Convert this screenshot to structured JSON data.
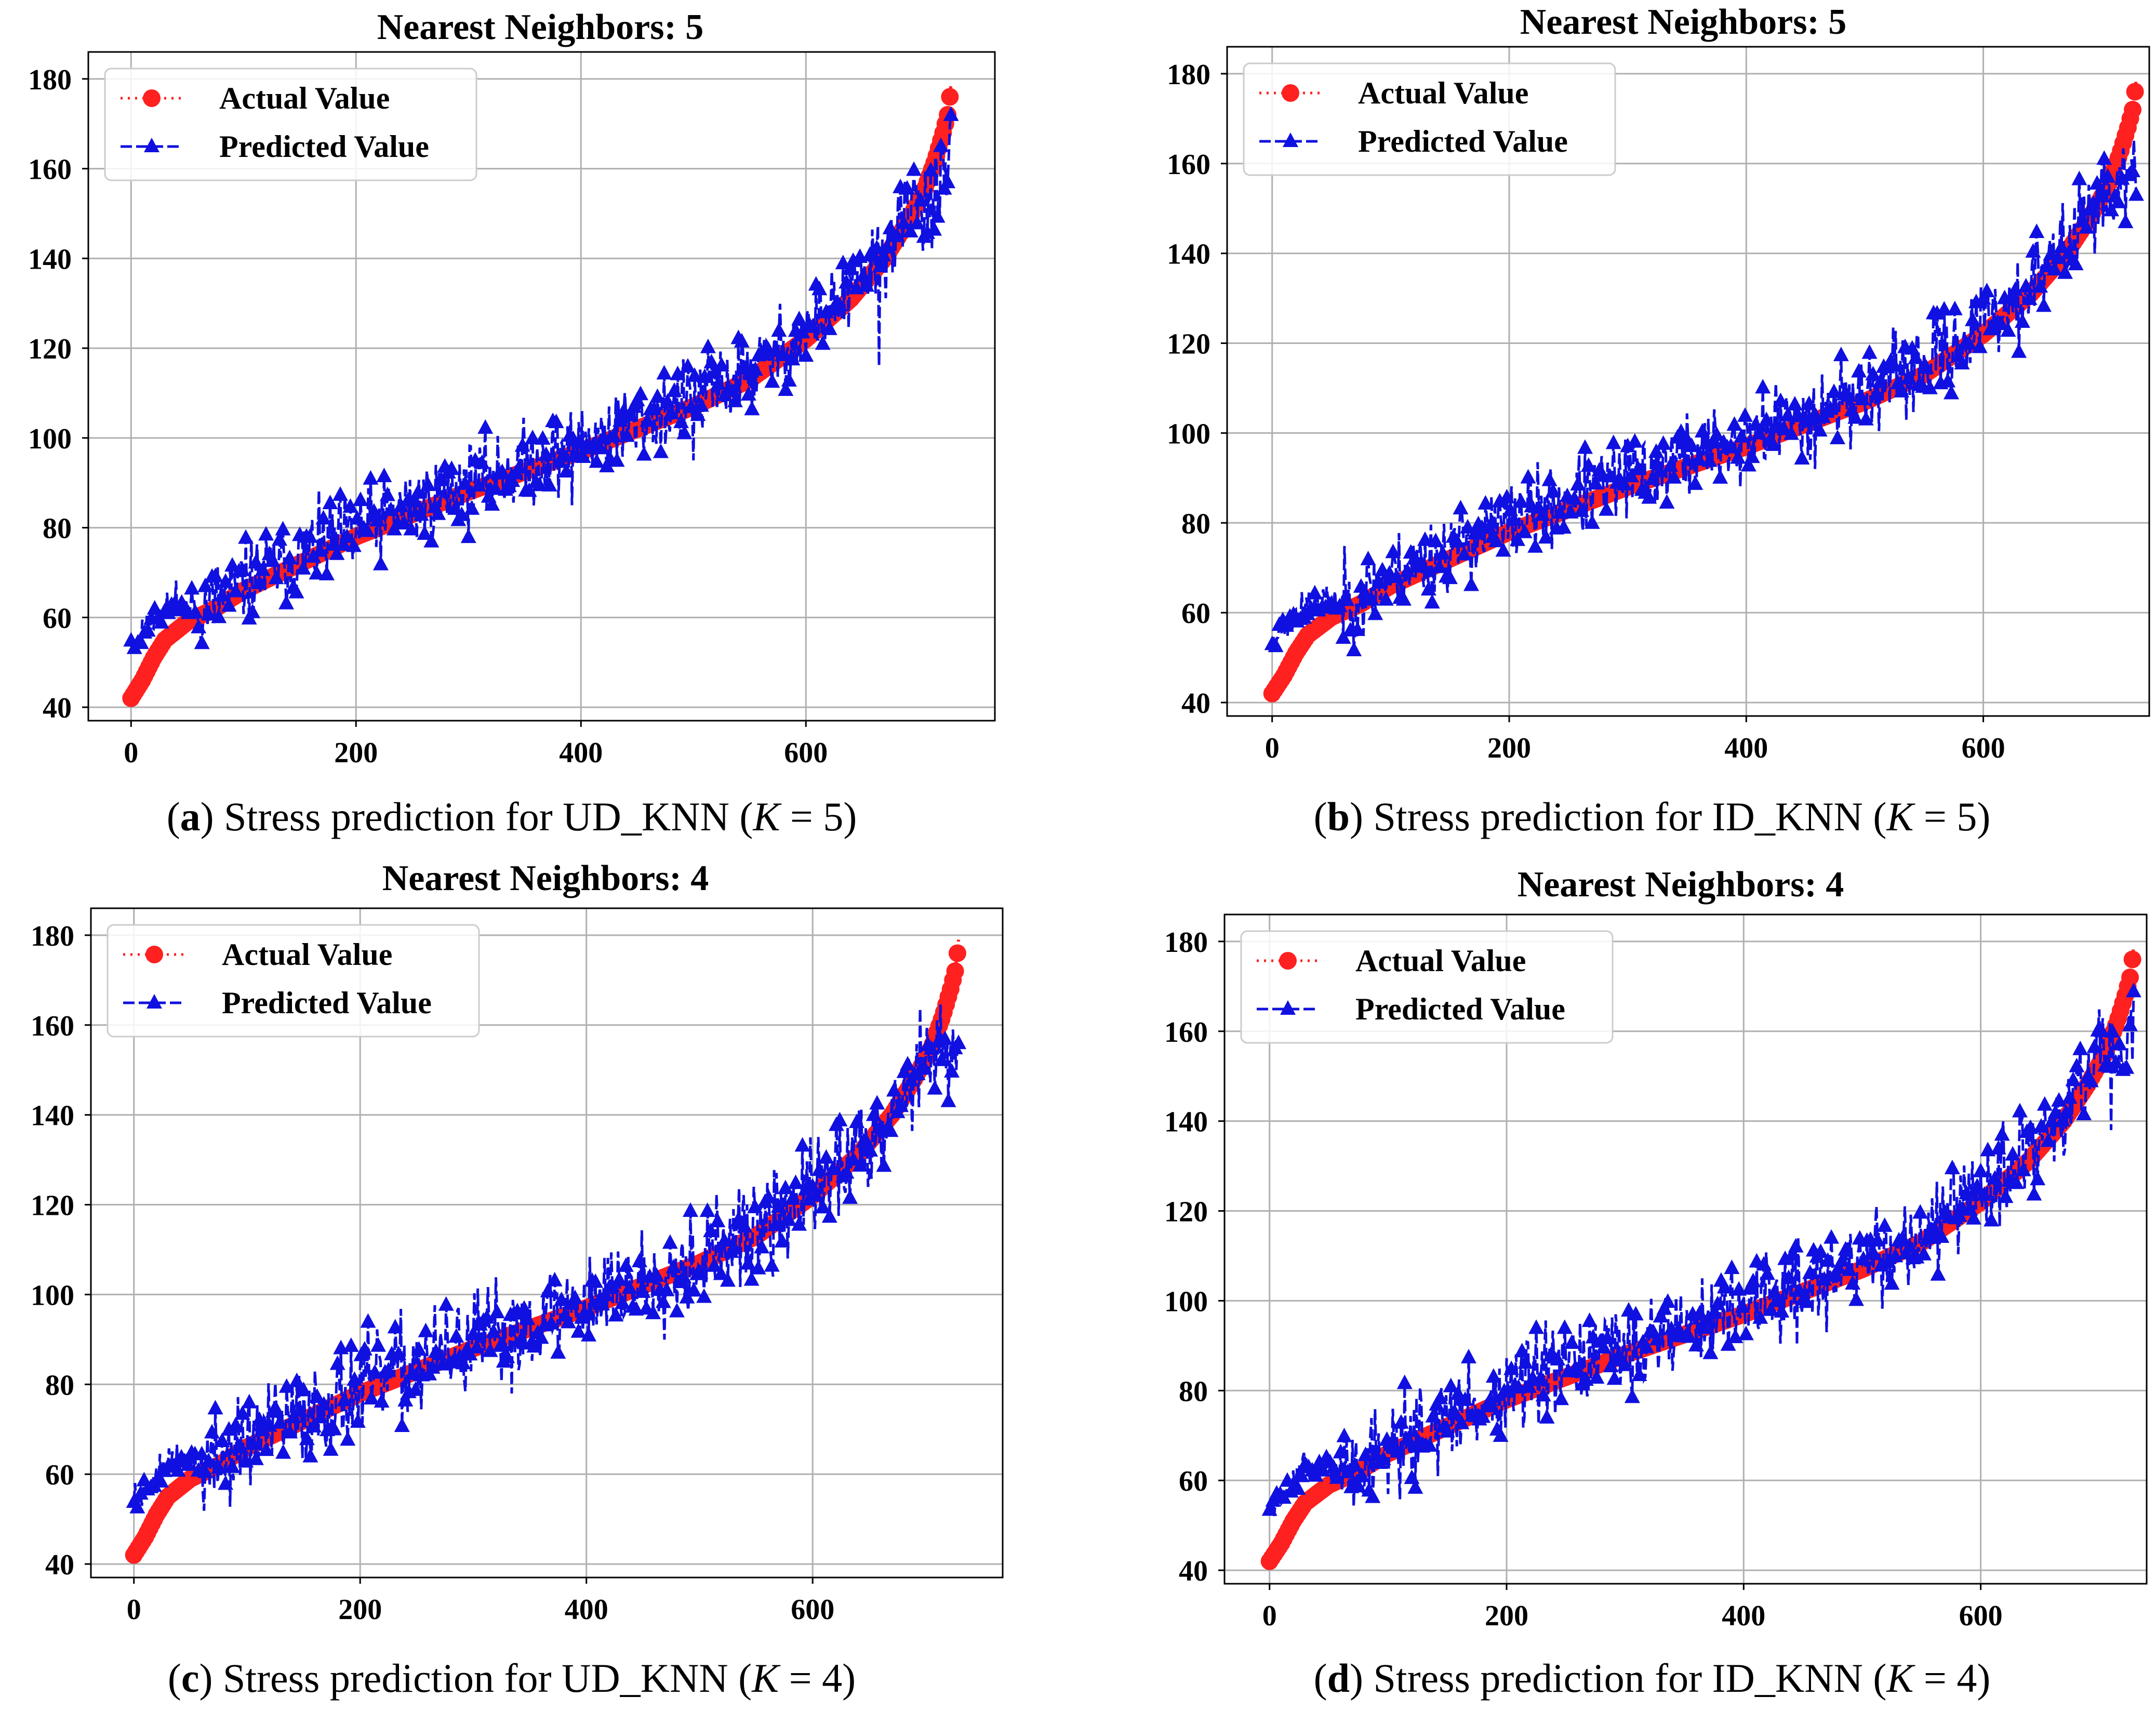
{
  "figure": {
    "captions": [
      {
        "letter": "a",
        "text": ") Stress prediction for UD_KNN (",
        "k_symbol": "K",
        "k_value": " = 5)"
      },
      {
        "letter": "b",
        "text": ") Stress prediction for ID_KNN (",
        "k_symbol": "K",
        "k_value": " = 5)"
      },
      {
        "letter": "c",
        "text": ") Stress prediction for UD_KNN (",
        "k_symbol": "K",
        "k_value": " = 4)"
      },
      {
        "letter": "d",
        "text": ") Stress prediction for ID_KNN (",
        "k_symbol": "K",
        "k_value": " = 4)"
      }
    ]
  },
  "chart_data": [
    {
      "type": "line",
      "title": "Nearest Neighbors: 5",
      "xlabel": "",
      "ylabel": "",
      "xlim": [
        -38,
        768
      ],
      "ylim": [
        37,
        186
      ],
      "xticks": [
        0,
        200,
        400,
        600
      ],
      "yticks": [
        40,
        60,
        80,
        100,
        120,
        140,
        160,
        180
      ],
      "grid": true,
      "legend_position": "top-left",
      "series": [
        {
          "name": "Actual Value",
          "color": "#ff2020",
          "marker": "circle",
          "linestyle": "dotted",
          "curve": [
            [
              0,
              42
            ],
            [
              10,
              46
            ],
            [
              20,
              51
            ],
            [
              30,
              55
            ],
            [
              50,
              59
            ],
            [
              75,
              62
            ],
            [
              100,
              66
            ],
            [
              150,
              72
            ],
            [
              200,
              78
            ],
            [
              300,
              88
            ],
            [
              400,
              97
            ],
            [
              500,
              107
            ],
            [
              550,
              113
            ],
            [
              600,
              122
            ],
            [
              640,
              131
            ],
            [
              670,
              140
            ],
            [
              690,
              148
            ],
            [
              705,
              155
            ],
            [
              715,
              162
            ],
            [
              722,
              168
            ],
            [
              726,
              172
            ],
            [
              728,
              176
            ],
            [
              729,
              179
            ],
            [
              730,
              180
            ]
          ]
        },
        {
          "name": "Predicted Value",
          "color": "#1010e0",
          "marker": "triangle",
          "linestyle": "dashed",
          "noise": 4.5,
          "bias": 1.5,
          "seed": 11,
          "outliers": [
            [
              392,
              85
            ],
            [
              665,
              116
            ],
            [
              197,
              73
            ],
            [
              500,
              95
            ]
          ]
        }
      ],
      "n_points": 730
    },
    {
      "type": "line",
      "title": "Nearest Neighbors: 5",
      "xlabel": "",
      "ylabel": "",
      "xlim": [
        -38,
        740
      ],
      "ylim": [
        37,
        186
      ],
      "xticks": [
        0,
        200,
        400,
        600
      ],
      "yticks": [
        40,
        60,
        80,
        100,
        120,
        140,
        160,
        180
      ],
      "grid": true,
      "legend_position": "top-left",
      "series": [
        {
          "name": "Actual Value",
          "color": "#ff2020",
          "marker": "circle",
          "linestyle": "dotted",
          "curve": [
            [
              0,
              42
            ],
            [
              10,
              46
            ],
            [
              20,
              51
            ],
            [
              30,
              55
            ],
            [
              50,
              59
            ],
            [
              75,
              62
            ],
            [
              100,
              66
            ],
            [
              150,
              72
            ],
            [
              200,
              78
            ],
            [
              300,
              88
            ],
            [
              400,
              97
            ],
            [
              500,
              107
            ],
            [
              550,
              113
            ],
            [
              600,
              122
            ],
            [
              640,
              131
            ],
            [
              670,
              140
            ],
            [
              690,
              148
            ],
            [
              705,
              155
            ],
            [
              715,
              162
            ],
            [
              722,
              168
            ],
            [
              726,
              172
            ],
            [
              728,
              176
            ],
            [
              729,
              179
            ],
            [
              730,
              180
            ]
          ]
        },
        {
          "name": "Predicted Value",
          "color": "#1010e0",
          "marker": "triangle",
          "linestyle": "dashed",
          "noise": 4.5,
          "bias": 2,
          "seed": 23,
          "outliers": [
            [
              458,
              92
            ],
            [
              630,
              118
            ],
            [
              395,
              88
            ],
            [
              280,
              84
            ]
          ]
        }
      ],
      "n_points": 730
    },
    {
      "type": "line",
      "title": "Nearest Neighbors: 4",
      "xlabel": "",
      "ylabel": "",
      "xlim": [
        -38,
        768
      ],
      "ylim": [
        37,
        186
      ],
      "xticks": [
        0,
        200,
        400,
        600
      ],
      "yticks": [
        40,
        60,
        80,
        100,
        120,
        140,
        160,
        180
      ],
      "grid": true,
      "legend_position": "top-left",
      "series": [
        {
          "name": "Actual Value",
          "color": "#ff2020",
          "marker": "circle",
          "linestyle": "dotted",
          "curve": [
            [
              0,
              42
            ],
            [
              10,
              46
            ],
            [
              20,
              51
            ],
            [
              30,
              55
            ],
            [
              50,
              59
            ],
            [
              75,
              62
            ],
            [
              100,
              66
            ],
            [
              150,
              72
            ],
            [
              200,
              78
            ],
            [
              300,
              88
            ],
            [
              400,
              97
            ],
            [
              500,
              107
            ],
            [
              550,
              113
            ],
            [
              600,
              122
            ],
            [
              640,
              131
            ],
            [
              670,
              140
            ],
            [
              690,
              148
            ],
            [
              705,
              155
            ],
            [
              715,
              162
            ],
            [
              722,
              168
            ],
            [
              726,
              172
            ],
            [
              728,
              176
            ],
            [
              729,
              179
            ],
            [
              730,
              180
            ]
          ]
        },
        {
          "name": "Predicted Value",
          "color": "#1010e0",
          "marker": "triangle",
          "linestyle": "dashed",
          "noise": 5.5,
          "bias": 1,
          "seed": 37,
          "outliers": [
            [
              565,
              104
            ],
            [
              330,
              86
            ],
            [
              720,
              143
            ]
          ]
        }
      ],
      "n_points": 730
    },
    {
      "type": "line",
      "title": "Nearest Neighbors: 4",
      "xlabel": "",
      "ylabel": "",
      "xlim": [
        -38,
        740
      ],
      "ylim": [
        37,
        186
      ],
      "xticks": [
        0,
        200,
        400,
        600
      ],
      "yticks": [
        40,
        60,
        80,
        100,
        120,
        140,
        160,
        180
      ],
      "grid": true,
      "legend_position": "top-left",
      "series": [
        {
          "name": "Actual Value",
          "color": "#ff2020",
          "marker": "circle",
          "linestyle": "dotted",
          "curve": [
            [
              0,
              42
            ],
            [
              10,
              46
            ],
            [
              20,
              51
            ],
            [
              30,
              55
            ],
            [
              50,
              59
            ],
            [
              75,
              62
            ],
            [
              100,
              66
            ],
            [
              150,
              72
            ],
            [
              200,
              78
            ],
            [
              300,
              88
            ],
            [
              400,
              97
            ],
            [
              500,
              107
            ],
            [
              550,
              113
            ],
            [
              600,
              122
            ],
            [
              640,
              131
            ],
            [
              670,
              140
            ],
            [
              690,
              148
            ],
            [
              705,
              155
            ],
            [
              715,
              162
            ],
            [
              722,
              168
            ],
            [
              726,
              172
            ],
            [
              728,
              176
            ],
            [
              729,
              179
            ],
            [
              730,
              180
            ]
          ]
        },
        {
          "name": "Predicted Value",
          "color": "#1010e0",
          "marker": "triangle",
          "linestyle": "dashed",
          "noise": 5,
          "bias": 1.5,
          "seed": 51,
          "outliers": [
            [
              470,
              93
            ],
            [
              710,
              138
            ],
            [
              360,
              90
            ]
          ]
        }
      ],
      "n_points": 730
    }
  ]
}
